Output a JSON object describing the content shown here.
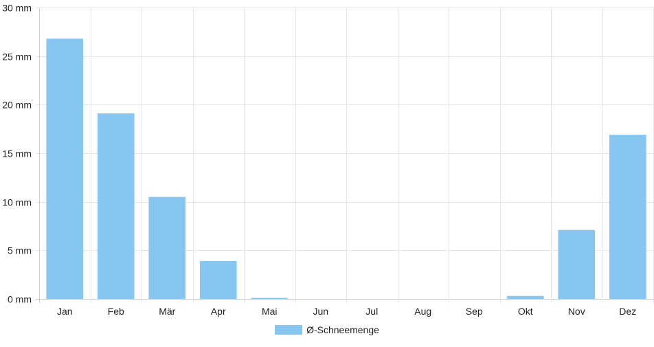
{
  "chart_data": {
    "type": "bar",
    "categories": [
      "Jan",
      "Feb",
      "Mär",
      "Apr",
      "Mai",
      "Jun",
      "Jul",
      "Aug",
      "Sep",
      "Okt",
      "Nov",
      "Dez"
    ],
    "series": [
      {
        "name": "Ø-Schneemenge",
        "values": [
          26.8,
          19.1,
          10.5,
          3.9,
          0.1,
          0,
          0,
          0,
          0,
          0.3,
          7.1,
          16.9
        ]
      }
    ],
    "y_ticks": [
      "0 mm",
      "5 mm",
      "10 mm",
      "15 mm",
      "20 mm",
      "25 mm",
      "30 mm"
    ],
    "ylim": [
      0,
      30
    ],
    "y_step": 5,
    "grid": true,
    "legend_position": "bottom-center",
    "bar_color": "#88c6f2",
    "grid_color": "#e5e5e5",
    "axis_color": "#cccccc"
  }
}
